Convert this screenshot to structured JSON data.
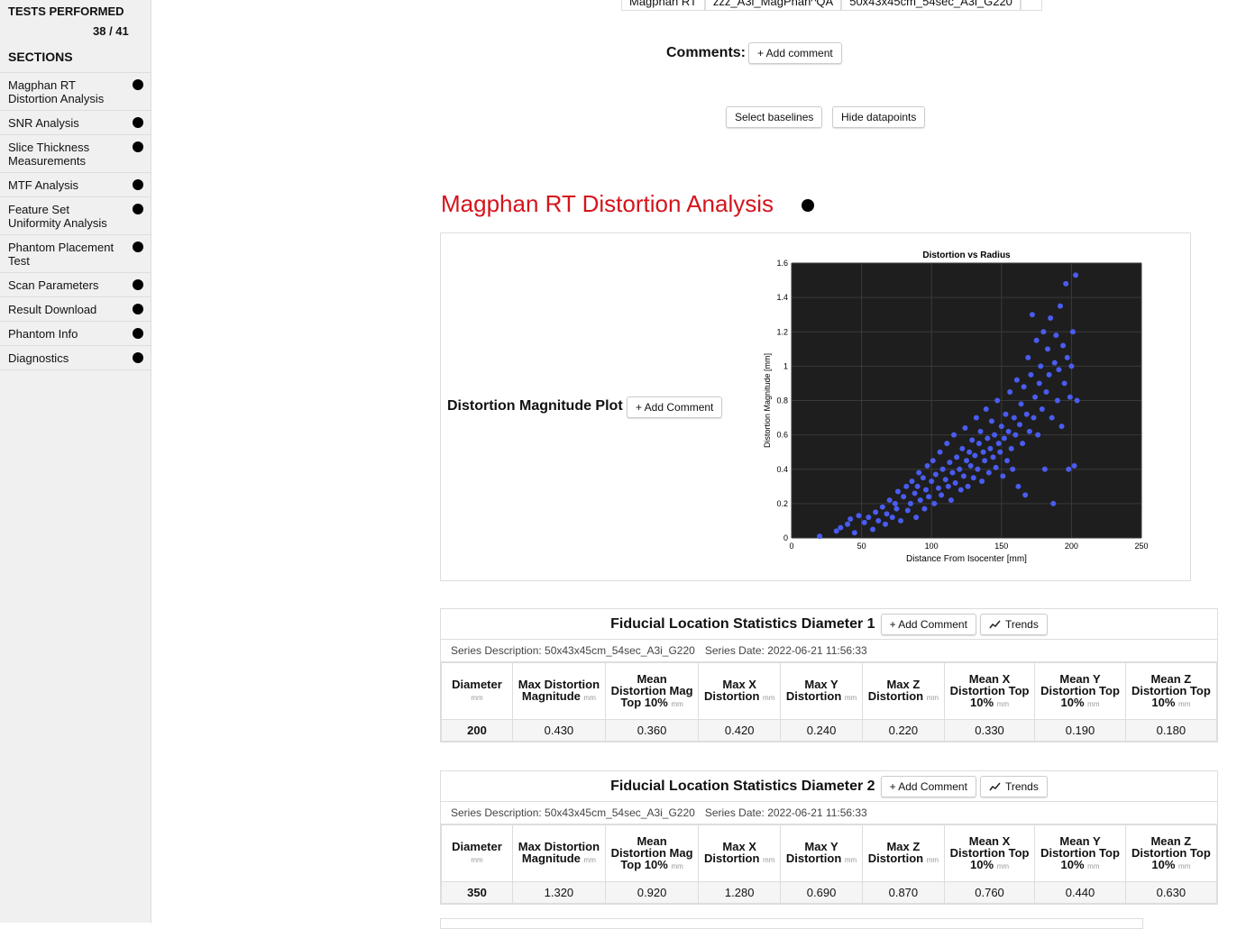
{
  "sidebar": {
    "tests_label": "TESTS PERFORMED",
    "tests_count": "38 / 41",
    "sections_label": "SECTIONS",
    "sections": [
      "Magphan RT Distortion Analysis",
      "SNR Analysis",
      "Slice Thickness Measurements",
      "MTF Analysis",
      "Feature Set Uniformity Analysis",
      "Phantom Placement Test",
      "Scan Parameters",
      "Result Download",
      "Phantom Info",
      "Diagnostics"
    ]
  },
  "top_row": [
    "Magphan RT",
    "zzz_A3i_MagPhan^QA",
    "50x43x45cm_54sec_A3i_G220"
  ],
  "comments": {
    "label": "Comments:",
    "button": "+ Add comment"
  },
  "buttons": [
    "Select baselines",
    "Hide datapoints"
  ],
  "section_title": "Magphan RT Distortion Analysis",
  "plot_label": "Distortion Magnitude Plot",
  "plot_button": "+ Add Comment",
  "chart_data": {
    "type": "scatter",
    "title": "Distortion vs Radius",
    "x_label": "Distance From Isocenter [mm]",
    "y_label": "Distortion Magnitude [mm]",
    "xlim": [
      0,
      250
    ],
    "ylim": [
      0,
      1.6
    ],
    "xticks": [
      0,
      50,
      100,
      150,
      200,
      250
    ],
    "yticks": [
      0,
      0.2,
      0.4,
      0.6,
      0.8,
      1,
      1.2,
      1.4,
      1.6
    ],
    "grid": true,
    "color": "#4a5cf0",
    "x": [
      20,
      32,
      35,
      40,
      42,
      45,
      48,
      52,
      55,
      58,
      60,
      62,
      65,
      67,
      68,
      70,
      72,
      74,
      75,
      76,
      78,
      80,
      82,
      83,
      85,
      86,
      88,
      89,
      90,
      91,
      92,
      94,
      95,
      96,
      97,
      98,
      100,
      101,
      102,
      103,
      105,
      106,
      107,
      108,
      110,
      111,
      112,
      113,
      114,
      115,
      116,
      117,
      118,
      120,
      121,
      122,
      123,
      124,
      125,
      126,
      127,
      128,
      129,
      130,
      131,
      132,
      133,
      134,
      135,
      136,
      137,
      138,
      139,
      140,
      141,
      142,
      143,
      144,
      145,
      146,
      147,
      148,
      149,
      150,
      151,
      152,
      153,
      154,
      155,
      156,
      157,
      158,
      159,
      160,
      161,
      162,
      163,
      164,
      165,
      166,
      167,
      168,
      169,
      170,
      171,
      172,
      173,
      174,
      175,
      176,
      177,
      178,
      179,
      180,
      181,
      182,
      183,
      184,
      185,
      186,
      187,
      188,
      189,
      190,
      191,
      192,
      193,
      194,
      195,
      196,
      197,
      198,
      199,
      200,
      201,
      202,
      203,
      204
    ],
    "values": [
      0.01,
      0.04,
      0.06,
      0.08,
      0.11,
      0.03,
      0.13,
      0.09,
      0.12,
      0.05,
      0.15,
      0.1,
      0.18,
      0.08,
      0.14,
      0.22,
      0.12,
      0.2,
      0.17,
      0.27,
      0.1,
      0.24,
      0.3,
      0.16,
      0.2,
      0.33,
      0.26,
      0.12,
      0.3,
      0.38,
      0.22,
      0.35,
      0.17,
      0.28,
      0.42,
      0.24,
      0.33,
      0.45,
      0.2,
      0.37,
      0.29,
      0.5,
      0.25,
      0.4,
      0.34,
      0.55,
      0.3,
      0.44,
      0.22,
      0.38,
      0.6,
      0.32,
      0.47,
      0.4,
      0.28,
      0.52,
      0.36,
      0.64,
      0.45,
      0.3,
      0.5,
      0.42,
      0.57,
      0.35,
      0.48,
      0.7,
      0.4,
      0.55,
      0.62,
      0.33,
      0.5,
      0.45,
      0.75,
      0.58,
      0.38,
      0.52,
      0.68,
      0.47,
      0.6,
      0.41,
      0.8,
      0.55,
      0.5,
      0.65,
      0.36,
      0.58,
      0.72,
      0.45,
      0.62,
      0.85,
      0.52,
      0.4,
      0.7,
      0.6,
      0.92,
      0.3,
      0.66,
      0.78,
      0.55,
      0.88,
      0.25,
      0.72,
      1.05,
      0.62,
      0.95,
      1.3,
      0.7,
      0.82,
      1.15,
      0.6,
      0.9,
      1.0,
      0.75,
      1.2,
      0.4,
      0.85,
      1.1,
      0.95,
      1.28,
      0.7,
      0.2,
      1.02,
      1.18,
      0.8,
      0.98,
      1.35,
      0.65,
      1.12,
      0.9,
      1.48,
      1.05,
      0.4,
      0.82,
      1.0,
      1.2,
      0.42,
      1.53,
      0.8
    ]
  },
  "tables": [
    {
      "title": "Fiducial Location Statistics Diameter 1",
      "add_comment": "+ Add Comment",
      "trends": "Trends",
      "series_description": "Series Description: 50x43x45cm_54sec_A3i_G220",
      "series_date": "Series Date: 2022-06-21 11:56:33",
      "columns": [
        {
          "label": "Diameter",
          "unit": "mm"
        },
        {
          "label": "Max Distortion Magnitude",
          "unit": "mm"
        },
        {
          "label": "Mean Distortion Mag Top 10%",
          "unit": "mm"
        },
        {
          "label": "Max X Distortion",
          "unit": "mm"
        },
        {
          "label": "Max Y Distortion",
          "unit": "mm"
        },
        {
          "label": "Max Z Distortion",
          "unit": "mm"
        },
        {
          "label": "Mean X Distortion Top 10%",
          "unit": "mm"
        },
        {
          "label": "Mean Y Distortion Top 10%",
          "unit": "mm"
        },
        {
          "label": "Mean Z Distortion Top 10%",
          "unit": "mm"
        }
      ],
      "row": [
        "200",
        "0.430",
        "0.360",
        "0.420",
        "0.240",
        "0.220",
        "0.330",
        "0.190",
        "0.180"
      ]
    },
    {
      "title": "Fiducial Location Statistics Diameter 2",
      "add_comment": "+ Add Comment",
      "trends": "Trends",
      "series_description": "Series Description: 50x43x45cm_54sec_A3i_G220",
      "series_date": "Series Date: 2022-06-21 11:56:33",
      "columns": [
        {
          "label": "Diameter",
          "unit": "mm"
        },
        {
          "label": "Max Distortion Magnitude",
          "unit": "mm"
        },
        {
          "label": "Mean Distortion Mag Top 10%",
          "unit": "mm"
        },
        {
          "label": "Max X Distortion",
          "unit": "mm"
        },
        {
          "label": "Max Y Distortion",
          "unit": "mm"
        },
        {
          "label": "Max Z Distortion",
          "unit": "mm"
        },
        {
          "label": "Mean X Distortion Top 10%",
          "unit": "mm"
        },
        {
          "label": "Mean Y Distortion Top 10%",
          "unit": "mm"
        },
        {
          "label": "Mean Z Distortion Top 10%",
          "unit": "mm"
        }
      ],
      "row": [
        "350",
        "1.320",
        "0.920",
        "1.280",
        "0.690",
        "0.870",
        "0.760",
        "0.440",
        "0.630"
      ]
    }
  ]
}
